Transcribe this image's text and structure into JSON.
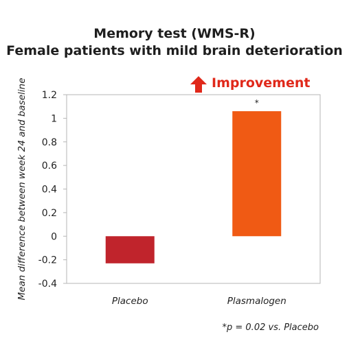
{
  "chart_data": {
    "type": "bar",
    "title_lines": [
      "Memory test (WMS-R)",
      "Female patients with mild brain deterioration"
    ],
    "ylabel": "Mean difference between week 24 and baseline",
    "xlabel": "",
    "categories": [
      "Placebo",
      "Plasmalogen"
    ],
    "values": [
      -0.23,
      1.06
    ],
    "bar_colors": [
      "#c0242c",
      "#f05a14"
    ],
    "bar_annotations": [
      "",
      "*"
    ],
    "ylim": [
      -0.4,
      1.2
    ],
    "yticks": [
      "-0.4",
      "-0.2",
      "0",
      "0.2",
      "0.4",
      "0.6",
      "0.8",
      "1",
      "1.2"
    ],
    "grid": false,
    "improvement_label": "Improvement",
    "improvement_color": "#e0281a",
    "footnote": "*p = 0.02 vs. Placebo"
  }
}
